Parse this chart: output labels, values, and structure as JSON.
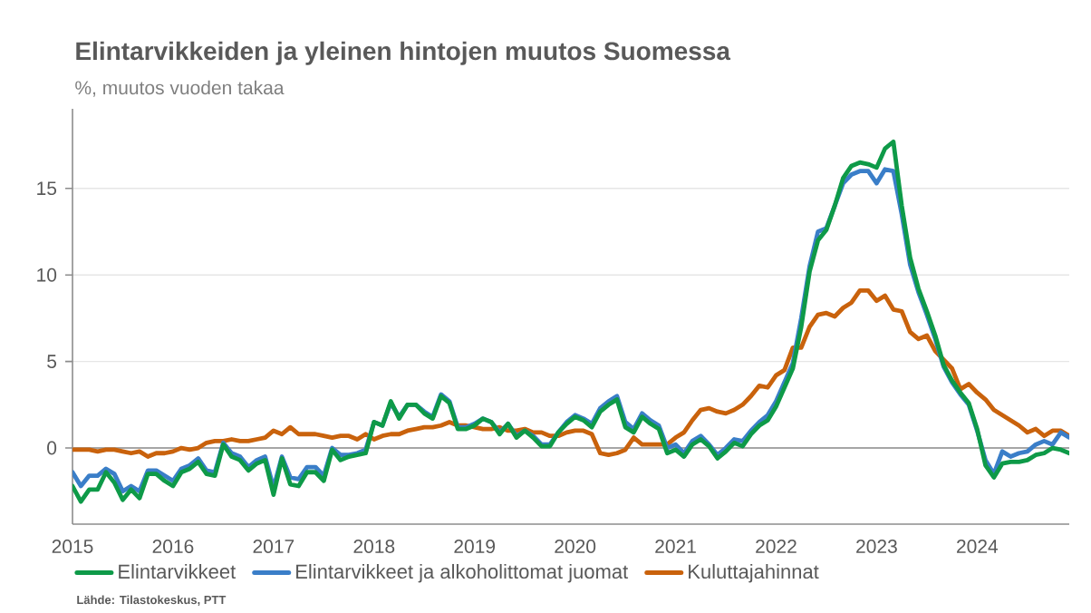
{
  "chart_data": {
    "type": "line",
    "title": "Elintarvikkeiden ja yleinen hintojen muutos Suomessa",
    "subtitle": "%, muutos vuoden takaa",
    "annotations": [
      "Lähde: Tilastokeskus, PTT"
    ],
    "x": [
      "2015-01",
      "2015-02",
      "2015-03",
      "2015-04",
      "2015-05",
      "2015-06",
      "2015-07",
      "2015-08",
      "2015-09",
      "2015-10",
      "2015-11",
      "2015-12",
      "2016-01",
      "2016-02",
      "2016-03",
      "2016-04",
      "2016-05",
      "2016-06",
      "2016-07",
      "2016-08",
      "2016-09",
      "2016-10",
      "2016-11",
      "2016-12",
      "2017-01",
      "2017-02",
      "2017-03",
      "2017-04",
      "2017-05",
      "2017-06",
      "2017-07",
      "2017-08",
      "2017-09",
      "2017-10",
      "2017-11",
      "2017-12",
      "2018-01",
      "2018-02",
      "2018-03",
      "2018-04",
      "2018-05",
      "2018-06",
      "2018-07",
      "2018-08",
      "2018-09",
      "2018-10",
      "2018-11",
      "2018-12",
      "2019-01",
      "2019-02",
      "2019-03",
      "2019-04",
      "2019-05",
      "2019-06",
      "2019-07",
      "2019-08",
      "2019-09",
      "2019-10",
      "2019-11",
      "2019-12",
      "2020-01",
      "2020-02",
      "2020-03",
      "2020-04",
      "2020-05",
      "2020-06",
      "2020-07",
      "2020-08",
      "2020-09",
      "2020-10",
      "2020-11",
      "2020-12",
      "2021-01",
      "2021-02",
      "2021-03",
      "2021-04",
      "2021-05",
      "2021-06",
      "2021-07",
      "2021-08",
      "2021-09",
      "2021-10",
      "2021-11",
      "2021-12",
      "2022-01",
      "2022-02",
      "2022-03",
      "2022-04",
      "2022-05",
      "2022-06",
      "2022-07",
      "2022-08",
      "2022-09",
      "2022-10",
      "2022-11",
      "2022-12",
      "2023-01",
      "2023-02",
      "2023-03",
      "2023-04",
      "2023-05",
      "2023-06",
      "2023-07",
      "2023-08",
      "2023-09",
      "2023-10",
      "2023-11",
      "2023-12",
      "2024-01",
      "2024-02",
      "2024-03",
      "2024-04",
      "2024-05",
      "2024-06",
      "2024-07",
      "2024-08",
      "2024-09",
      "2024-10",
      "2024-11",
      "2024-12"
    ],
    "series": [
      {
        "name": "Elintarvikkeet",
        "color": "#0e9a48",
        "values": [
          -2.2,
          -3.1,
          -2.4,
          -2.4,
          -1.4,
          -2.0,
          -3.0,
          -2.4,
          -2.9,
          -1.5,
          -1.5,
          -1.9,
          -2.2,
          -1.4,
          -1.2,
          -0.8,
          -1.5,
          -1.6,
          0.2,
          -0.5,
          -0.7,
          -1.3,
          -0.9,
          -0.7,
          -2.7,
          -0.6,
          -2.1,
          -2.2,
          -1.4,
          -1.4,
          -1.9,
          -0.1,
          -0.7,
          -0.5,
          -0.4,
          -0.3,
          1.5,
          1.3,
          2.7,
          1.7,
          2.5,
          2.5,
          2.0,
          1.7,
          3.0,
          2.6,
          1.1,
          1.1,
          1.3,
          1.7,
          1.5,
          0.8,
          1.4,
          0.6,
          1.0,
          0.6,
          0.1,
          0.1,
          0.9,
          1.4,
          1.8,
          1.6,
          1.2,
          2.1,
          2.5,
          2.8,
          1.2,
          0.9,
          1.8,
          1.4,
          1.1,
          -0.3,
          -0.1,
          -0.5,
          0.2,
          0.5,
          0.1,
          -0.6,
          -0.2,
          0.3,
          0.1,
          0.8,
          1.3,
          1.6,
          2.4,
          3.5,
          4.6,
          7.0,
          10.2,
          12.0,
          12.6,
          14.0,
          15.6,
          16.3,
          16.5,
          16.4,
          16.2,
          17.3,
          17.7,
          14.0,
          11.0,
          9.2,
          7.9,
          6.5,
          4.8,
          3.9,
          3.2,
          2.6,
          1.1,
          -1.0,
          -1.7,
          -0.9,
          -0.8,
          -0.8,
          -0.7,
          -0.4,
          -0.3,
          0.0,
          -0.1,
          -0.3
        ]
      },
      {
        "name": "Elintarvikkeet ja alkoholittomat juomat",
        "color": "#3a7ec8",
        "values": [
          -1.4,
          -2.2,
          -1.6,
          -1.6,
          -1.2,
          -1.5,
          -2.5,
          -2.2,
          -2.5,
          -1.3,
          -1.3,
          -1.6,
          -1.9,
          -1.2,
          -1.0,
          -0.6,
          -1.3,
          -1.4,
          0.3,
          -0.3,
          -0.5,
          -1.1,
          -0.7,
          -0.5,
          -2.3,
          -0.5,
          -1.7,
          -1.8,
          -1.1,
          -1.1,
          -1.6,
          0.0,
          -0.4,
          -0.4,
          -0.3,
          -0.1,
          1.5,
          1.3,
          2.6,
          1.8,
          2.5,
          2.5,
          2.1,
          1.8,
          3.1,
          2.7,
          1.2,
          1.2,
          1.4,
          1.7,
          1.5,
          0.9,
          1.4,
          0.7,
          1.0,
          0.7,
          0.2,
          0.2,
          0.9,
          1.5,
          1.9,
          1.7,
          1.4,
          2.3,
          2.7,
          3.0,
          1.5,
          1.1,
          2.0,
          1.6,
          1.3,
          0.0,
          0.2,
          -0.3,
          0.4,
          0.7,
          0.2,
          -0.4,
          0.0,
          0.5,
          0.4,
          1.0,
          1.5,
          1.9,
          2.7,
          3.8,
          4.9,
          7.5,
          10.5,
          12.5,
          12.7,
          14.0,
          15.3,
          15.8,
          16.0,
          16.0,
          15.3,
          16.1,
          16.0,
          13.5,
          10.6,
          9.0,
          7.7,
          6.3,
          4.7,
          3.8,
          3.1,
          2.5,
          1.0,
          -0.7,
          -1.5,
          -0.2,
          -0.5,
          -0.3,
          -0.2,
          0.2,
          0.4,
          0.2,
          0.9,
          0.6
        ]
      },
      {
        "name": "Kuluttajahinnat",
        "color": "#c9620c",
        "values": [
          -0.1,
          -0.1,
          -0.1,
          -0.2,
          -0.1,
          -0.1,
          -0.2,
          -0.3,
          -0.2,
          -0.5,
          -0.3,
          -0.3,
          -0.2,
          0.0,
          -0.1,
          0.0,
          0.3,
          0.4,
          0.4,
          0.5,
          0.4,
          0.4,
          0.5,
          0.6,
          1.0,
          0.8,
          1.2,
          0.8,
          0.8,
          0.8,
          0.7,
          0.6,
          0.7,
          0.7,
          0.5,
          0.8,
          0.5,
          0.7,
          0.8,
          0.8,
          1.0,
          1.1,
          1.2,
          1.2,
          1.3,
          1.5,
          1.3,
          1.3,
          1.2,
          1.1,
          1.1,
          1.2,
          1.0,
          1.0,
          1.1,
          0.9,
          0.9,
          0.7,
          0.7,
          0.9,
          1.0,
          1.0,
          0.8,
          -0.3,
          -0.4,
          -0.3,
          -0.1,
          0.6,
          0.2,
          0.2,
          0.2,
          0.2,
          0.6,
          0.9,
          1.6,
          2.2,
          2.3,
          2.1,
          2.0,
          2.2,
          2.5,
          3.0,
          3.6,
          3.5,
          4.2,
          4.5,
          5.8,
          5.8,
          7.0,
          7.7,
          7.8,
          7.6,
          8.1,
          8.4,
          9.1,
          9.1,
          8.5,
          8.8,
          8.0,
          7.9,
          6.7,
          6.3,
          6.5,
          5.6,
          5.1,
          4.6,
          3.4,
          3.7,
          3.2,
          2.8,
          2.2,
          1.9,
          1.6,
          1.3,
          0.9,
          1.1,
          0.7,
          1.0,
          1.0,
          0.7
        ]
      }
    ],
    "xlim": [
      "2015-01",
      "2024-12"
    ],
    "ylim": [
      -4.4,
      19.6
    ],
    "xticks": [
      "2015",
      "2016",
      "2017",
      "2018",
      "2019",
      "2020",
      "2021",
      "2022",
      "2023",
      "2024"
    ],
    "yticks": [
      0,
      5,
      10,
      15
    ],
    "grid": "y",
    "legend": "bottom",
    "line_style": "solid",
    "ref_lines": [
      {
        "axis": "y",
        "value": 0,
        "color": "#a6a6a6"
      }
    ]
  }
}
